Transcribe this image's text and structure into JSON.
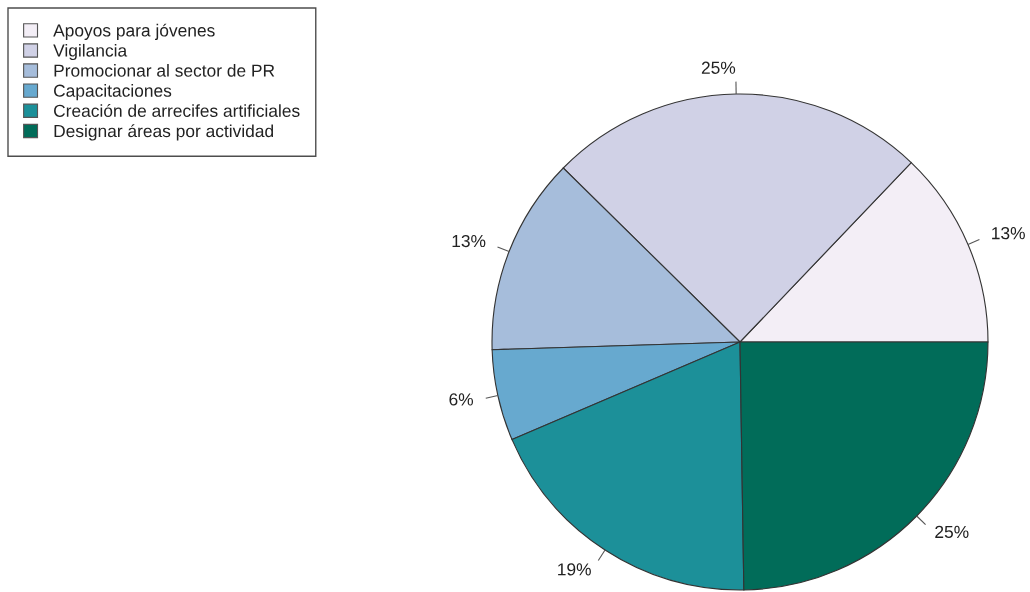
{
  "chart_data": {
    "type": "pie",
    "categories": [
      "Apoyos para jóvenes",
      "Vigilancia",
      "Promocionar al sector de PR",
      "Capacitaciones",
      "Creación de arrecifes artificiales",
      "Designar áreas por actividad"
    ],
    "values": [
      13,
      25,
      13,
      6,
      19,
      25
    ],
    "colors": [
      "#f3eef6",
      "#d0d1e6",
      "#a6bddb",
      "#67a9cf",
      "#1c9099",
      "#016c59"
    ],
    "value_labels": [
      "13%",
      "25%",
      "13%",
      "6%",
      "19%",
      "25%"
    ],
    "legend": "top left"
  }
}
